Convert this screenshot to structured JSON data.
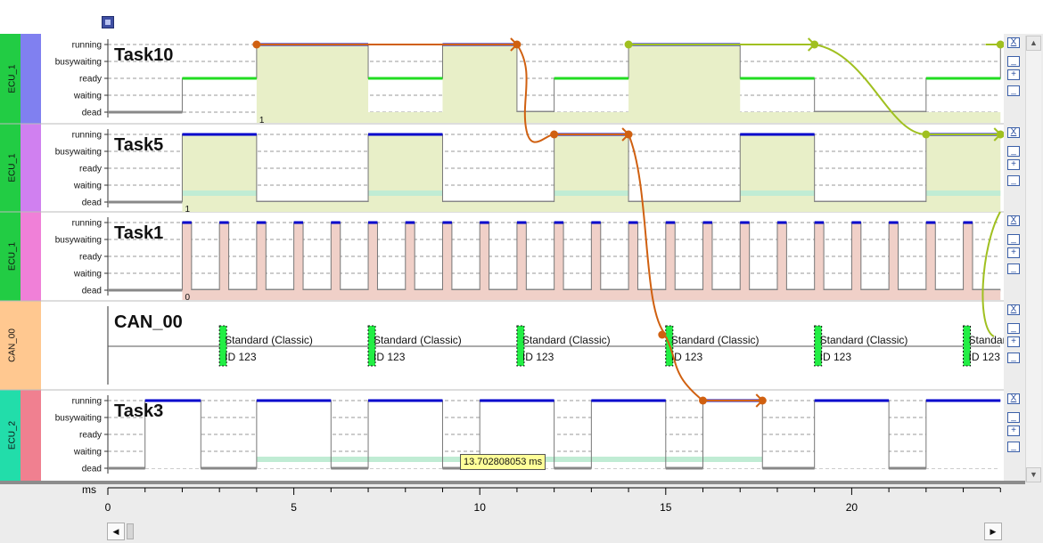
{
  "toolbar": {
    "icon": "save-icon"
  },
  "lanes": [
    {
      "id": "task10",
      "ecu": "ECU_1",
      "name": "Task10",
      "color_ecu": "#22cc44",
      "color_lane": "#8080f0",
      "marker": "1"
    },
    {
      "id": "task5",
      "ecu": "ECU_1",
      "name": "Task5",
      "color_ecu": "#22cc44",
      "color_lane": "#d080f0",
      "marker": "1"
    },
    {
      "id": "task1",
      "ecu": "ECU_1",
      "name": "Task1",
      "color_ecu": "#22cc44",
      "color_lane": "#f080d8",
      "marker": "0"
    },
    {
      "id": "can00",
      "ecu": "CAN_00",
      "name": "CAN_00",
      "color_ecu": "#ffc890",
      "color_lane": "#ffc890",
      "marker": ""
    },
    {
      "id": "task3",
      "ecu": "ECU_2",
      "name": "Task3",
      "color_ecu": "#22ddaa",
      "color_lane": "#f08090",
      "marker": ""
    }
  ],
  "states": [
    "running",
    "busywaiting",
    "ready",
    "waiting",
    "dead"
  ],
  "can_frames": {
    "line1": "Standard (Classic)",
    "line2": "ID 123",
    "times_ms": [
      3,
      7,
      11,
      15,
      19,
      23
    ]
  },
  "timeline": {
    "unit": "ms",
    "ticks": [
      "0",
      "5",
      "10",
      "15",
      "20"
    ]
  },
  "tooltip": {
    "value": "13.702808053 ms"
  },
  "lane_controls": {
    "close": "X",
    "minus": "–",
    "plus": "+",
    "minimize": "_"
  },
  "colors": {
    "running": "#0000cc",
    "ready": "#22dd22",
    "dead": "#888888",
    "fill_task10": "#e8efc8",
    "fill_task1": "#f0d0c8",
    "waiting_strip": "#c0ecd4",
    "chain_orange": "#d06010",
    "chain_green": "#a0c020"
  }
}
